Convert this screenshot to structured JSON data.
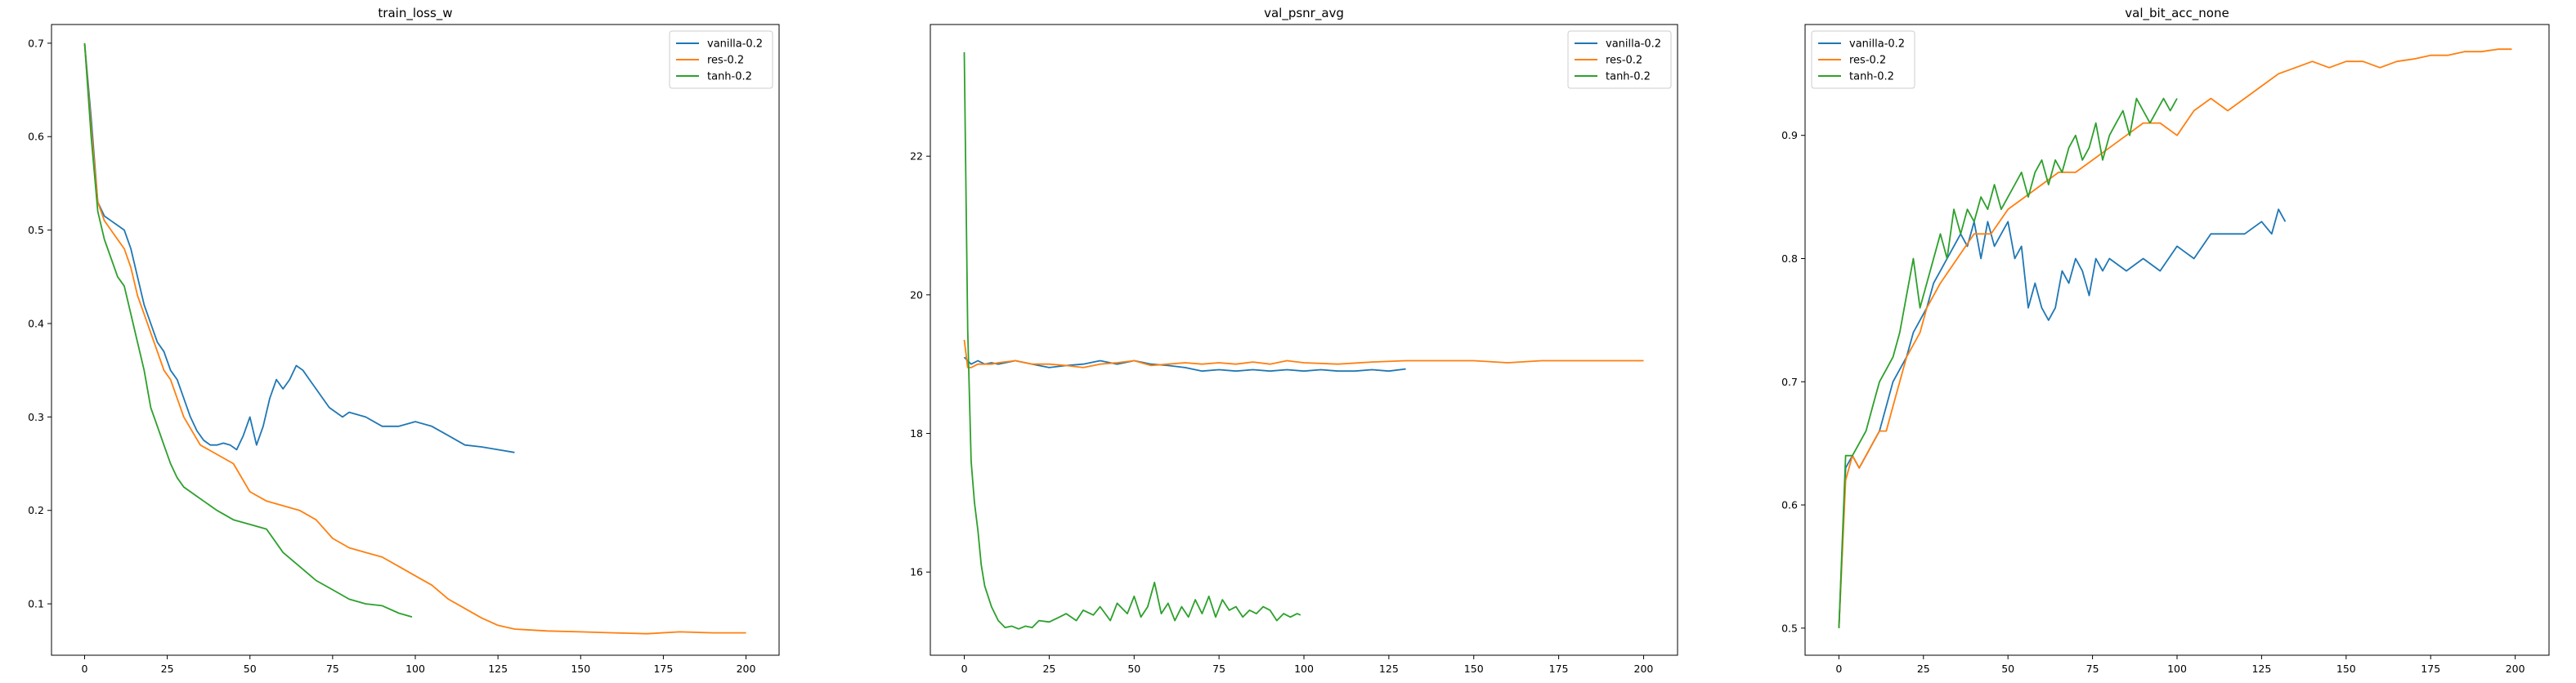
{
  "colors": {
    "blue": "#1f77b4",
    "orange": "#ff7f0e",
    "green": "#2ca02c"
  },
  "chart_data": [
    {
      "type": "line",
      "title": "train_loss_w",
      "xlabel": "",
      "ylabel": "",
      "xlim": [
        -10,
        210
      ],
      "ylim": [
        0.045,
        0.72
      ],
      "xticks": [
        0,
        25,
        50,
        75,
        100,
        125,
        150,
        175,
        200
      ],
      "yticks": [
        0.1,
        0.2,
        0.3,
        0.4,
        0.5,
        0.6,
        0.7
      ],
      "xtick_labels": [
        "0",
        "25",
        "50",
        "75",
        "100",
        "125",
        "150",
        "175",
        "200"
      ],
      "ytick_labels": [
        "0.1",
        "0.2",
        "0.3",
        "0.4",
        "0.5",
        "0.6",
        "0.7"
      ],
      "legend": "top-right",
      "series": [
        {
          "name": "vanilla-0.2",
          "color": "#1f77b4",
          "x": [
            0,
            2,
            4,
            6,
            8,
            10,
            12,
            14,
            16,
            18,
            20,
            22,
            24,
            26,
            28,
            30,
            32,
            34,
            36,
            38,
            40,
            42,
            44,
            46,
            48,
            50,
            52,
            54,
            56,
            58,
            60,
            62,
            64,
            66,
            68,
            70,
            72,
            74,
            76,
            78,
            80,
            85,
            90,
            95,
            100,
            105,
            110,
            115,
            120,
            125,
            130
          ],
          "y": [
            0.7,
            0.62,
            0.53,
            0.515,
            0.51,
            0.505,
            0.5,
            0.48,
            0.45,
            0.42,
            0.4,
            0.38,
            0.37,
            0.35,
            0.34,
            0.32,
            0.3,
            0.285,
            0.275,
            0.27,
            0.27,
            0.272,
            0.27,
            0.265,
            0.28,
            0.3,
            0.27,
            0.29,
            0.32,
            0.34,
            0.33,
            0.34,
            0.355,
            0.35,
            0.34,
            0.33,
            0.32,
            0.31,
            0.305,
            0.3,
            0.305,
            0.3,
            0.29,
            0.29,
            0.295,
            0.29,
            0.28,
            0.27,
            0.268,
            0.265,
            0.262
          ]
        },
        {
          "name": "res-0.2",
          "color": "#ff7f0e",
          "x": [
            0,
            2,
            4,
            6,
            8,
            10,
            12,
            14,
            16,
            18,
            20,
            22,
            24,
            26,
            28,
            30,
            35,
            40,
            45,
            50,
            55,
            60,
            65,
            70,
            75,
            80,
            85,
            90,
            95,
            100,
            105,
            110,
            115,
            120,
            125,
            130,
            140,
            150,
            160,
            170,
            180,
            190,
            200
          ],
          "y": [
            0.7,
            0.61,
            0.53,
            0.51,
            0.5,
            0.49,
            0.48,
            0.46,
            0.43,
            0.41,
            0.39,
            0.37,
            0.35,
            0.34,
            0.32,
            0.3,
            0.27,
            0.26,
            0.25,
            0.22,
            0.21,
            0.205,
            0.2,
            0.19,
            0.17,
            0.16,
            0.155,
            0.15,
            0.14,
            0.13,
            0.12,
            0.105,
            0.095,
            0.085,
            0.077,
            0.073,
            0.071,
            0.07,
            0.069,
            0.068,
            0.07,
            0.069,
            0.069
          ]
        },
        {
          "name": "tanh-0.2",
          "color": "#2ca02c",
          "x": [
            0,
            2,
            4,
            6,
            8,
            10,
            12,
            14,
            16,
            18,
            20,
            22,
            24,
            26,
            28,
            30,
            32,
            34,
            36,
            38,
            40,
            45,
            50,
            55,
            60,
            65,
            70,
            75,
            80,
            85,
            90,
            95,
            99
          ],
          "y": [
            0.7,
            0.6,
            0.52,
            0.49,
            0.47,
            0.45,
            0.44,
            0.41,
            0.38,
            0.35,
            0.31,
            0.29,
            0.27,
            0.25,
            0.235,
            0.225,
            0.22,
            0.215,
            0.21,
            0.205,
            0.2,
            0.19,
            0.185,
            0.18,
            0.155,
            0.14,
            0.125,
            0.115,
            0.105,
            0.1,
            0.098,
            0.09,
            0.086
          ]
        }
      ]
    },
    {
      "type": "line",
      "title": "val_psnr_avg",
      "xlabel": "",
      "ylabel": "",
      "xlim": [
        -10,
        210
      ],
      "ylim": [
        14.8,
        23.9
      ],
      "xticks": [
        0,
        25,
        50,
        75,
        100,
        125,
        150,
        175,
        200
      ],
      "yticks": [
        16,
        18,
        20,
        22
      ],
      "xtick_labels": [
        "0",
        "25",
        "50",
        "75",
        "100",
        "125",
        "150",
        "175",
        "200"
      ],
      "ytick_labels": [
        "16",
        "18",
        "20",
        "22"
      ],
      "legend": "top-right",
      "series": [
        {
          "name": "vanilla-0.2",
          "color": "#1f77b4",
          "x": [
            0,
            2,
            4,
            6,
            8,
            10,
            15,
            20,
            25,
            30,
            35,
            40,
            45,
            50,
            55,
            60,
            65,
            70,
            75,
            80,
            85,
            90,
            95,
            100,
            105,
            110,
            115,
            120,
            125,
            130
          ],
          "y": [
            19.1,
            19.0,
            19.05,
            19.0,
            19.02,
            19.0,
            19.05,
            19.0,
            18.95,
            18.98,
            19.0,
            19.05,
            19.0,
            19.05,
            19.0,
            18.98,
            18.95,
            18.9,
            18.92,
            18.9,
            18.92,
            18.9,
            18.92,
            18.9,
            18.92,
            18.9,
            18.9,
            18.92,
            18.9,
            18.93
          ]
        },
        {
          "name": "res-0.2",
          "color": "#ff7f0e",
          "x": [
            0,
            1,
            2,
            4,
            6,
            8,
            10,
            15,
            20,
            25,
            30,
            35,
            40,
            45,
            50,
            55,
            60,
            65,
            70,
            75,
            80,
            85,
            90,
            95,
            100,
            110,
            120,
            130,
            140,
            150,
            160,
            170,
            180,
            190,
            200
          ],
          "y": [
            19.35,
            18.95,
            18.95,
            19.0,
            19.0,
            19.0,
            19.02,
            19.05,
            19.0,
            19.0,
            18.98,
            18.95,
            19.0,
            19.02,
            19.05,
            18.98,
            19.0,
            19.02,
            19.0,
            19.02,
            19.0,
            19.03,
            19.0,
            19.05,
            19.02,
            19.0,
            19.03,
            19.05,
            19.05,
            19.05,
            19.02,
            19.05,
            19.05,
            19.05,
            19.05
          ]
        },
        {
          "name": "tanh-0.2",
          "color": "#2ca02c",
          "x": [
            0,
            1,
            2,
            3,
            4,
            5,
            6,
            8,
            10,
            12,
            14,
            16,
            18,
            20,
            22,
            25,
            28,
            30,
            33,
            35,
            38,
            40,
            43,
            45,
            48,
            50,
            52,
            54,
            56,
            58,
            60,
            62,
            64,
            66,
            68,
            70,
            72,
            74,
            76,
            78,
            80,
            82,
            84,
            86,
            88,
            90,
            92,
            94,
            96,
            98,
            99
          ],
          "y": [
            23.5,
            19.5,
            17.6,
            17.0,
            16.6,
            16.1,
            15.8,
            15.5,
            15.3,
            15.2,
            15.22,
            15.18,
            15.22,
            15.2,
            15.3,
            15.28,
            15.35,
            15.4,
            15.3,
            15.45,
            15.38,
            15.5,
            15.3,
            15.55,
            15.4,
            15.65,
            15.35,
            15.5,
            15.85,
            15.4,
            15.55,
            15.3,
            15.5,
            15.35,
            15.6,
            15.4,
            15.65,
            15.35,
            15.6,
            15.45,
            15.5,
            15.35,
            15.45,
            15.4,
            15.5,
            15.45,
            15.3,
            15.4,
            15.35,
            15.4,
            15.38
          ]
        }
      ]
    },
    {
      "type": "line",
      "title": "val_bit_acc_none",
      "xlabel": "",
      "ylabel": "",
      "xlim": [
        -10,
        210
      ],
      "ylim": [
        0.478,
        0.99
      ],
      "xticks": [
        0,
        25,
        50,
        75,
        100,
        125,
        150,
        175,
        200
      ],
      "yticks": [
        0.5,
        0.6,
        0.7,
        0.8,
        0.9
      ],
      "xtick_labels": [
        "0",
        "25",
        "50",
        "75",
        "100",
        "125",
        "150",
        "175",
        "200"
      ],
      "ytick_labels": [
        "0.5",
        "0.6",
        "0.7",
        "0.8",
        "0.9"
      ],
      "legend": "top-left",
      "series": [
        {
          "name": "vanilla-0.2",
          "color": "#1f77b4",
          "x": [
            0,
            2,
            4,
            6,
            8,
            10,
            12,
            14,
            16,
            18,
            20,
            22,
            24,
            26,
            28,
            30,
            32,
            34,
            36,
            38,
            40,
            42,
            44,
            46,
            48,
            50,
            52,
            54,
            56,
            58,
            60,
            62,
            64,
            66,
            68,
            70,
            72,
            74,
            76,
            78,
            80,
            85,
            90,
            95,
            100,
            105,
            110,
            115,
            120,
            125,
            128,
            130,
            132
          ],
          "y": [
            0.5,
            0.63,
            0.64,
            0.63,
            0.64,
            0.65,
            0.66,
            0.68,
            0.7,
            0.71,
            0.72,
            0.74,
            0.75,
            0.76,
            0.78,
            0.79,
            0.8,
            0.81,
            0.82,
            0.81,
            0.83,
            0.8,
            0.83,
            0.81,
            0.82,
            0.83,
            0.8,
            0.81,
            0.76,
            0.78,
            0.76,
            0.75,
            0.76,
            0.79,
            0.78,
            0.8,
            0.79,
            0.77,
            0.8,
            0.79,
            0.8,
            0.79,
            0.8,
            0.79,
            0.81,
            0.8,
            0.82,
            0.82,
            0.82,
            0.83,
            0.82,
            0.84,
            0.83
          ]
        },
        {
          "name": "res-0.2",
          "color": "#ff7f0e",
          "x": [
            0,
            2,
            4,
            6,
            8,
            10,
            12,
            14,
            16,
            18,
            20,
            22,
            24,
            26,
            28,
            30,
            35,
            40,
            45,
            50,
            55,
            60,
            65,
            70,
            75,
            80,
            85,
            90,
            95,
            100,
            105,
            110,
            115,
            120,
            125,
            130,
            135,
            140,
            145,
            150,
            155,
            160,
            165,
            170,
            175,
            180,
            185,
            190,
            195,
            199
          ],
          "y": [
            0.5,
            0.62,
            0.64,
            0.63,
            0.64,
            0.65,
            0.66,
            0.66,
            0.68,
            0.7,
            0.72,
            0.73,
            0.74,
            0.76,
            0.77,
            0.78,
            0.8,
            0.82,
            0.82,
            0.84,
            0.85,
            0.86,
            0.87,
            0.87,
            0.88,
            0.89,
            0.9,
            0.91,
            0.91,
            0.9,
            0.92,
            0.93,
            0.92,
            0.93,
            0.94,
            0.95,
            0.955,
            0.96,
            0.955,
            0.96,
            0.96,
            0.955,
            0.96,
            0.962,
            0.965,
            0.965,
            0.968,
            0.968,
            0.97,
            0.97
          ]
        },
        {
          "name": "tanh-0.2",
          "color": "#2ca02c",
          "x": [
            0,
            2,
            4,
            6,
            8,
            10,
            12,
            14,
            16,
            18,
            20,
            22,
            24,
            26,
            28,
            30,
            32,
            34,
            36,
            38,
            40,
            42,
            44,
            46,
            48,
            50,
            52,
            54,
            56,
            58,
            60,
            62,
            64,
            66,
            68,
            70,
            72,
            74,
            76,
            78,
            80,
            82,
            84,
            86,
            88,
            90,
            92,
            94,
            96,
            98,
            100
          ],
          "y": [
            0.5,
            0.64,
            0.64,
            0.65,
            0.66,
            0.68,
            0.7,
            0.71,
            0.72,
            0.74,
            0.77,
            0.8,
            0.76,
            0.78,
            0.8,
            0.82,
            0.8,
            0.84,
            0.82,
            0.84,
            0.83,
            0.85,
            0.84,
            0.86,
            0.84,
            0.85,
            0.86,
            0.87,
            0.85,
            0.87,
            0.88,
            0.86,
            0.88,
            0.87,
            0.89,
            0.9,
            0.88,
            0.89,
            0.91,
            0.88,
            0.9,
            0.91,
            0.92,
            0.9,
            0.93,
            0.92,
            0.91,
            0.92,
            0.93,
            0.92,
            0.93
          ]
        }
      ]
    }
  ]
}
